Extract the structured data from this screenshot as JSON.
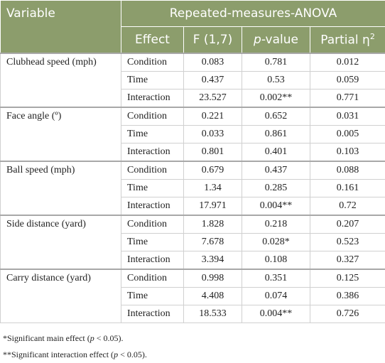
{
  "table": {
    "header": {
      "variable": "Variable",
      "group": "Repeated-measures-ANOVA",
      "columns": [
        [
          {
            "t": "Effect"
          }
        ],
        [
          {
            "t": "F (1,7)"
          }
        ],
        [
          {
            "t": "p",
            "i": true
          },
          {
            "t": "-value"
          }
        ],
        [
          {
            "t": "Partial η"
          },
          {
            "t": "2",
            "sup": true
          }
        ]
      ]
    },
    "rows": [
      {
        "variable": "Clubhead speed (mph)",
        "effects": [
          [
            "Condition",
            "0.083",
            "0.781",
            "0.012"
          ],
          [
            "Time",
            "0.437",
            "0.53",
            "0.059"
          ],
          [
            "Interaction",
            "23.527",
            "0.002**",
            "0.771"
          ]
        ]
      },
      {
        "variable": "Face angle (º)",
        "effects": [
          [
            "Condition",
            "0.221",
            "0.652",
            "0.031"
          ],
          [
            "Time",
            "0.033",
            "0.861",
            "0.005"
          ],
          [
            "Interaction",
            "0.801",
            "0.401",
            "0.103"
          ]
        ]
      },
      {
        "variable": "Ball speed (mph)",
        "effects": [
          [
            "Condition",
            "0.679",
            "0.437",
            "0.088"
          ],
          [
            "Time",
            "1.34",
            "0.285",
            "0.161"
          ],
          [
            "Interaction",
            "17.971",
            "0.004**",
            "0.72"
          ]
        ]
      },
      {
        "variable": "Side distance (yard)",
        "effects": [
          [
            "Condition",
            "1.828",
            "0.218",
            "0.207"
          ],
          [
            "Time",
            "7.678",
            "0.028*",
            "0.523"
          ],
          [
            "Interaction",
            "3.394",
            "0.108",
            "0.327"
          ]
        ]
      },
      {
        "variable": "Carry distance (yard)",
        "effects": [
          [
            "Condition",
            "0.998",
            "0.351",
            "0.125"
          ],
          [
            "Time",
            "4.408",
            "0.074",
            "0.386"
          ],
          [
            "Interaction",
            "18.533",
            "0.004**",
            "0.726"
          ]
        ]
      }
    ]
  },
  "footnotes": [
    [
      {
        "t": "*Significant main effect ("
      },
      {
        "t": "p",
        "i": true
      },
      {
        "t": " < 0.05)."
      }
    ],
    [
      {
        "t": "**Significant interaction effect ("
      },
      {
        "t": "p",
        "i": true
      },
      {
        "t": " < 0.05)."
      }
    ]
  ]
}
